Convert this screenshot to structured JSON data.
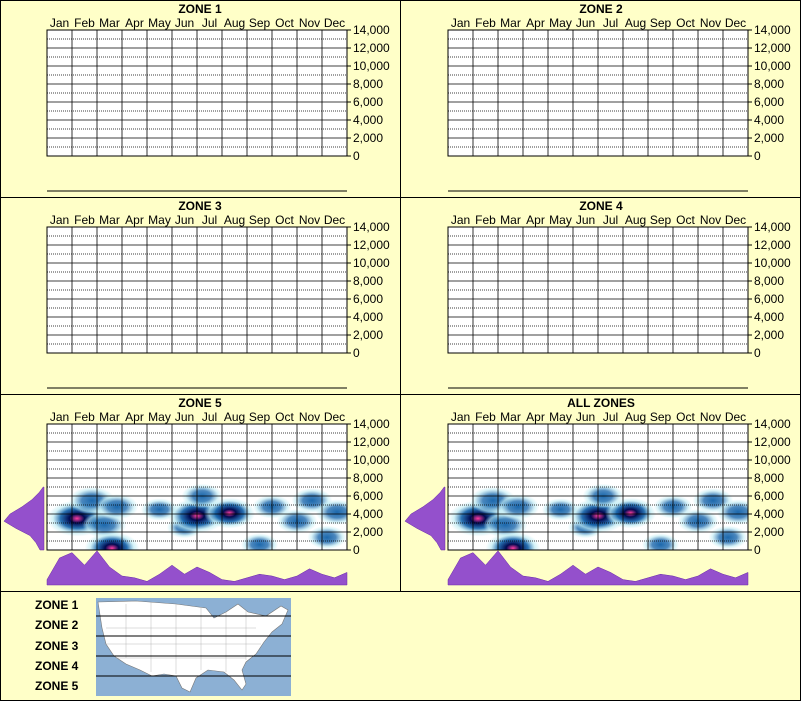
{
  "months": [
    "Jan",
    "Feb",
    "Mar",
    "Apr",
    "May",
    "Jun",
    "Jul",
    "Aug",
    "Sep",
    "Oct",
    "Nov",
    "Dec"
  ],
  "y_ticks": [
    "14,000",
    "12,000",
    "10,000",
    "8,000",
    "6,000",
    "4,000",
    "2,000",
    "0"
  ],
  "colors": {
    "background": "#ffffc8",
    "grid": "#000000",
    "marginal": "#9450cc",
    "density_low": "#c0ecf4",
    "density_mid": "#1060a8",
    "density_high": "#000a50",
    "density_peak": "#ff3ca0",
    "map_water": "#8cb0d4",
    "map_land": "#ffffff"
  },
  "chart_data": [
    {
      "type": "heatmap",
      "title": "ZONE 1",
      "x_categories": [
        "Jan",
        "Feb",
        "Mar",
        "Apr",
        "May",
        "Jun",
        "Jul",
        "Aug",
        "Sep",
        "Oct",
        "Nov",
        "Dec"
      ],
      "ylim": [
        0,
        14000
      ],
      "grid": true,
      "density": []
    },
    {
      "type": "heatmap",
      "title": "ZONE 2",
      "x_categories": [
        "Jan",
        "Feb",
        "Mar",
        "Apr",
        "May",
        "Jun",
        "Jul",
        "Aug",
        "Sep",
        "Oct",
        "Nov",
        "Dec"
      ],
      "ylim": [
        0,
        14000
      ],
      "grid": true,
      "density": []
    },
    {
      "type": "heatmap",
      "title": "ZONE 3",
      "x_categories": [
        "Jan",
        "Feb",
        "Mar",
        "Apr",
        "May",
        "Jun",
        "Jul",
        "Aug",
        "Sep",
        "Oct",
        "Nov",
        "Dec"
      ],
      "ylim": [
        0,
        14000
      ],
      "grid": true,
      "density": []
    },
    {
      "type": "heatmap",
      "title": "ZONE 4",
      "x_categories": [
        "Jan",
        "Feb",
        "Mar",
        "Apr",
        "May",
        "Jun",
        "Jul",
        "Aug",
        "Sep",
        "Oct",
        "Nov",
        "Dec"
      ],
      "ylim": [
        0,
        14000
      ],
      "grid": true,
      "density": []
    },
    {
      "type": "heatmap",
      "title": "ZONE 5",
      "x_categories": [
        "Jan",
        "Feb",
        "Mar",
        "Apr",
        "May",
        "Jun",
        "Jul",
        "Aug",
        "Sep",
        "Oct",
        "Nov",
        "Dec"
      ],
      "ylim": [
        0,
        14000
      ],
      "grid": true,
      "density": [
        {
          "month": 1.2,
          "elev": 3500,
          "intensity": 1.0
        },
        {
          "month": 1.8,
          "elev": 5500,
          "intensity": 0.6
        },
        {
          "month": 2.3,
          "elev": 2800,
          "intensity": 0.55
        },
        {
          "month": 2.6,
          "elev": 200,
          "intensity": 0.85
        },
        {
          "month": 2.8,
          "elev": 4800,
          "intensity": 0.5
        },
        {
          "month": 4.5,
          "elev": 4500,
          "intensity": 0.35
        },
        {
          "month": 5.5,
          "elev": 2500,
          "intensity": 0.3
        },
        {
          "month": 6.0,
          "elev": 3800,
          "intensity": 0.95
        },
        {
          "month": 6.2,
          "elev": 6000,
          "intensity": 0.45
        },
        {
          "month": 7.3,
          "elev": 4100,
          "intensity": 0.75
        },
        {
          "month": 8.5,
          "elev": 600,
          "intensity": 0.35
        },
        {
          "month": 9.0,
          "elev": 4800,
          "intensity": 0.4
        },
        {
          "month": 10.0,
          "elev": 3200,
          "intensity": 0.45
        },
        {
          "month": 10.6,
          "elev": 5500,
          "intensity": 0.45
        },
        {
          "month": 11.2,
          "elev": 1400,
          "intensity": 0.4
        },
        {
          "month": 11.6,
          "elev": 4200,
          "intensity": 0.5
        }
      ],
      "elevation_marginal": [
        {
          "elev": 0,
          "v": 0.1
        },
        {
          "elev": 800,
          "v": 0.2
        },
        {
          "elev": 1600,
          "v": 0.35
        },
        {
          "elev": 2400,
          "v": 0.7
        },
        {
          "elev": 3200,
          "v": 1.0
        },
        {
          "elev": 4000,
          "v": 0.85
        },
        {
          "elev": 4800,
          "v": 0.55
        },
        {
          "elev": 5600,
          "v": 0.3
        },
        {
          "elev": 6400,
          "v": 0.12
        },
        {
          "elev": 7000,
          "v": 0.02
        }
      ],
      "month_marginal": [
        0.15,
        0.75,
        0.9,
        0.55,
        0.95,
        0.5,
        0.25,
        0.2,
        0.1,
        0.3,
        0.55,
        0.3,
        0.5,
        0.35,
        0.15,
        0.1,
        0.2,
        0.3,
        0.25,
        0.15,
        0.25,
        0.45,
        0.3,
        0.2,
        0.35
      ]
    },
    {
      "type": "heatmap",
      "title": "ALL ZONES",
      "x_categories": [
        "Jan",
        "Feb",
        "Mar",
        "Apr",
        "May",
        "Jun",
        "Jul",
        "Aug",
        "Sep",
        "Oct",
        "Nov",
        "Dec"
      ],
      "ylim": [
        0,
        14000
      ],
      "grid": true,
      "density": [
        {
          "month": 1.2,
          "elev": 3500,
          "intensity": 1.0
        },
        {
          "month": 1.8,
          "elev": 5500,
          "intensity": 0.6
        },
        {
          "month": 2.3,
          "elev": 2800,
          "intensity": 0.55
        },
        {
          "month": 2.6,
          "elev": 200,
          "intensity": 0.85
        },
        {
          "month": 2.8,
          "elev": 4800,
          "intensity": 0.5
        },
        {
          "month": 4.5,
          "elev": 4500,
          "intensity": 0.35
        },
        {
          "month": 5.5,
          "elev": 2500,
          "intensity": 0.3
        },
        {
          "month": 6.0,
          "elev": 3800,
          "intensity": 0.95
        },
        {
          "month": 6.2,
          "elev": 6000,
          "intensity": 0.45
        },
        {
          "month": 7.3,
          "elev": 4100,
          "intensity": 0.75
        },
        {
          "month": 8.5,
          "elev": 600,
          "intensity": 0.35
        },
        {
          "month": 9.0,
          "elev": 4800,
          "intensity": 0.4
        },
        {
          "month": 10.0,
          "elev": 3200,
          "intensity": 0.45
        },
        {
          "month": 10.6,
          "elev": 5500,
          "intensity": 0.45
        },
        {
          "month": 11.2,
          "elev": 1400,
          "intensity": 0.4
        },
        {
          "month": 11.6,
          "elev": 4200,
          "intensity": 0.5
        }
      ],
      "elevation_marginal": [
        {
          "elev": 0,
          "v": 0.1
        },
        {
          "elev": 800,
          "v": 0.2
        },
        {
          "elev": 1600,
          "v": 0.35
        },
        {
          "elev": 2400,
          "v": 0.7
        },
        {
          "elev": 3200,
          "v": 1.0
        },
        {
          "elev": 4000,
          "v": 0.85
        },
        {
          "elev": 4800,
          "v": 0.55
        },
        {
          "elev": 5600,
          "v": 0.3
        },
        {
          "elev": 6400,
          "v": 0.12
        },
        {
          "elev": 7000,
          "v": 0.02
        }
      ],
      "month_marginal": [
        0.15,
        0.75,
        0.9,
        0.55,
        0.95,
        0.5,
        0.25,
        0.2,
        0.1,
        0.3,
        0.55,
        0.3,
        0.5,
        0.35,
        0.15,
        0.1,
        0.2,
        0.3,
        0.25,
        0.15,
        0.25,
        0.45,
        0.3,
        0.2,
        0.35
      ]
    }
  ],
  "legend": {
    "zones": [
      "ZONE 1",
      "ZONE 2",
      "ZONE 3",
      "ZONE 4",
      "ZONE 5"
    ]
  }
}
